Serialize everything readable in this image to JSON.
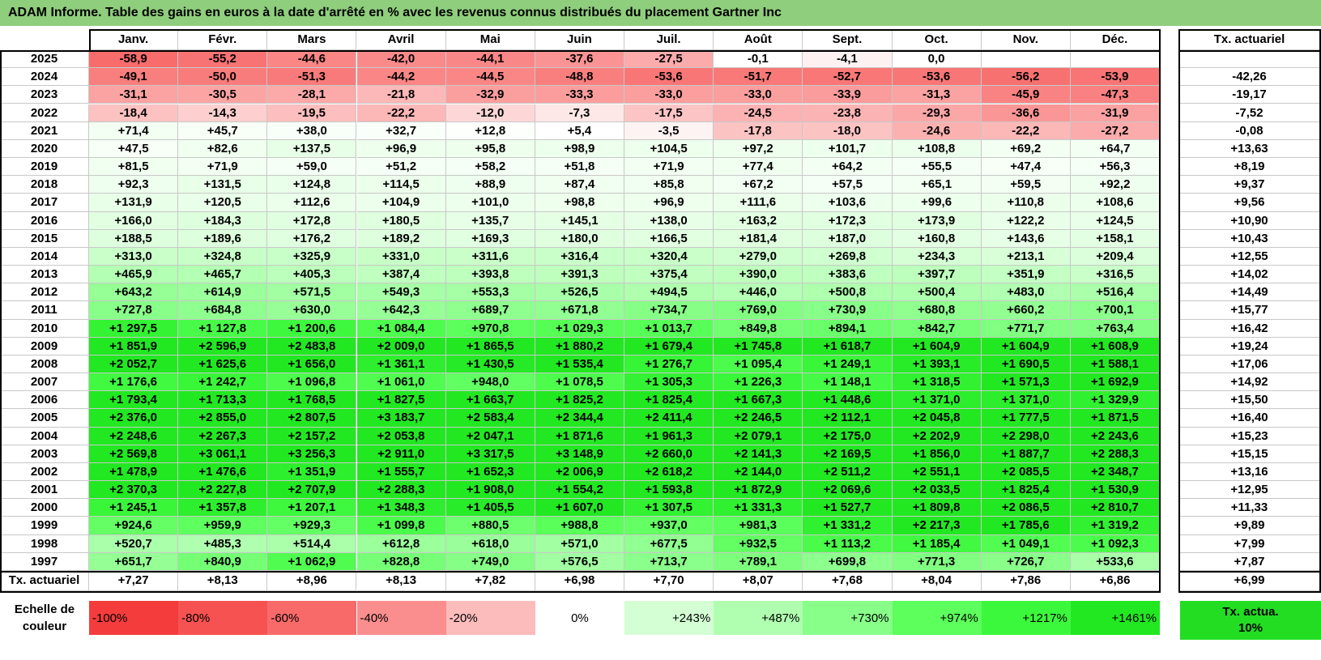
{
  "title": "ADAM Informe. Table des gains en euros à la date d'arrêté en % avec les revenus connus distribués du placement Gartner Inc",
  "table": {
    "header": [
      "Janv.",
      "Févr.",
      "Mars",
      "Avril",
      "Mai",
      "Juin",
      "Juil.",
      "Août",
      "Sept.",
      "Oct.",
      "Nov.",
      "Déc."
    ],
    "rate_header": "Tx. actuariel",
    "rows": [
      {
        "year": "2025",
        "cells": [
          "-58,9",
          "-55,2",
          "-44,6",
          "-42,0",
          "-44,1",
          "-37,6",
          "-27,5",
          "-0,1",
          "-4,1",
          "0,0",
          null,
          null
        ],
        "rate": null
      },
      {
        "year": "2024",
        "cells": [
          "-49,1",
          "-50,0",
          "-51,3",
          "-44,2",
          "-44,5",
          "-48,8",
          "-53,6",
          "-51,7",
          "-52,7",
          "-53,6",
          "-56,2",
          "-53,9"
        ],
        "rate": "-42,26"
      },
      {
        "year": "2023",
        "cells": [
          "-31,1",
          "-30,5",
          "-28,1",
          "-21,8",
          "-32,9",
          "-33,3",
          "-33,0",
          "-33,0",
          "-33,9",
          "-31,3",
          "-45,9",
          "-47,3"
        ],
        "rate": "-19,17"
      },
      {
        "year": "2022",
        "cells": [
          "-18,4",
          "-14,3",
          "-19,5",
          "-22,2",
          "-12,0",
          "-7,3",
          "-17,5",
          "-24,5",
          "-23,8",
          "-29,3",
          "-36,6",
          "-31,9"
        ],
        "rate": "-7,52"
      },
      {
        "year": "2021",
        "cells": [
          "+71,4",
          "+45,7",
          "+38,0",
          "+32,7",
          "+12,8",
          "+5,4",
          "-3,5",
          "-17,8",
          "-18,0",
          "-24,6",
          "-22,2",
          "-27,2"
        ],
        "rate": "-0,08"
      },
      {
        "year": "2020",
        "cells": [
          "+47,5",
          "+82,6",
          "+137,5",
          "+96,9",
          "+95,8",
          "+98,9",
          "+104,5",
          "+97,2",
          "+101,7",
          "+108,8",
          "+69,2",
          "+64,7"
        ],
        "rate": "+13,63"
      },
      {
        "year": "2019",
        "cells": [
          "+81,5",
          "+71,9",
          "+59,0",
          "+51,2",
          "+58,2",
          "+51,8",
          "+71,9",
          "+77,4",
          "+64,2",
          "+55,5",
          "+47,4",
          "+56,3"
        ],
        "rate": "+8,19"
      },
      {
        "year": "2018",
        "cells": [
          "+92,3",
          "+131,5",
          "+124,8",
          "+114,5",
          "+88,9",
          "+87,4",
          "+85,8",
          "+67,2",
          "+57,5",
          "+65,1",
          "+59,5",
          "+92,2"
        ],
        "rate": "+9,37"
      },
      {
        "year": "2017",
        "cells": [
          "+131,9",
          "+120,5",
          "+112,6",
          "+104,9",
          "+101,0",
          "+98,8",
          "+96,9",
          "+111,6",
          "+103,6",
          "+99,6",
          "+110,8",
          "+108,6"
        ],
        "rate": "+9,56"
      },
      {
        "year": "2016",
        "cells": [
          "+166,0",
          "+184,3",
          "+172,8",
          "+180,5",
          "+135,7",
          "+145,1",
          "+138,0",
          "+163,2",
          "+172,3",
          "+173,9",
          "+122,2",
          "+124,5"
        ],
        "rate": "+10,90"
      },
      {
        "year": "2015",
        "cells": [
          "+188,5",
          "+189,6",
          "+176,2",
          "+189,2",
          "+169,3",
          "+180,0",
          "+166,5",
          "+181,4",
          "+187,0",
          "+160,8",
          "+143,6",
          "+158,1"
        ],
        "rate": "+10,43"
      },
      {
        "year": "2014",
        "cells": [
          "+313,0",
          "+324,8",
          "+325,9",
          "+331,0",
          "+311,6",
          "+316,4",
          "+320,4",
          "+279,0",
          "+269,8",
          "+234,3",
          "+213,1",
          "+209,4"
        ],
        "rate": "+12,55"
      },
      {
        "year": "2013",
        "cells": [
          "+465,9",
          "+465,7",
          "+405,3",
          "+387,4",
          "+393,8",
          "+391,3",
          "+375,4",
          "+390,0",
          "+383,6",
          "+397,7",
          "+351,9",
          "+316,5"
        ],
        "rate": "+14,02"
      },
      {
        "year": "2012",
        "cells": [
          "+643,2",
          "+614,9",
          "+571,5",
          "+549,3",
          "+553,3",
          "+526,5",
          "+494,5",
          "+446,0",
          "+500,8",
          "+500,4",
          "+483,0",
          "+516,4"
        ],
        "rate": "+14,49"
      },
      {
        "year": "2011",
        "cells": [
          "+727,8",
          "+684,8",
          "+630,0",
          "+642,3",
          "+689,7",
          "+671,8",
          "+734,7",
          "+769,0",
          "+730,9",
          "+680,8",
          "+660,2",
          "+700,1"
        ],
        "rate": "+15,77"
      },
      {
        "year": "2010",
        "cells": [
          "+1 297,5",
          "+1 127,8",
          "+1 200,6",
          "+1 084,4",
          "+970,8",
          "+1 029,3",
          "+1 013,7",
          "+849,8",
          "+894,1",
          "+842,7",
          "+771,7",
          "+763,4"
        ],
        "rate": "+16,42"
      },
      {
        "year": "2009",
        "cells": [
          "+1 851,9",
          "+2 596,9",
          "+2 483,8",
          "+2 009,0",
          "+1 865,5",
          "+1 880,2",
          "+1 679,4",
          "+1 745,8",
          "+1 618,7",
          "+1 604,9",
          "+1 604,9",
          "+1 608,9"
        ],
        "rate": "+19,24"
      },
      {
        "year": "2008",
        "cells": [
          "+2 052,7",
          "+1 625,6",
          "+1 656,0",
          "+1 361,1",
          "+1 430,5",
          "+1 535,4",
          "+1 276,7",
          "+1 095,4",
          "+1 249,1",
          "+1 393,1",
          "+1 690,5",
          "+1 588,1"
        ],
        "rate": "+17,06"
      },
      {
        "year": "2007",
        "cells": [
          "+1 176,6",
          "+1 242,7",
          "+1 096,8",
          "+1 061,0",
          "+948,0",
          "+1 078,5",
          "+1 305,3",
          "+1 226,3",
          "+1 148,1",
          "+1 318,5",
          "+1 571,3",
          "+1 692,9"
        ],
        "rate": "+14,92"
      },
      {
        "year": "2006",
        "cells": [
          "+1 793,4",
          "+1 713,3",
          "+1 768,5",
          "+1 827,5",
          "+1 663,7",
          "+1 825,2",
          "+1 825,4",
          "+1 667,3",
          "+1 448,6",
          "+1 371,0",
          "+1 371,0",
          "+1 329,9"
        ],
        "rate": "+15,50"
      },
      {
        "year": "2005",
        "cells": [
          "+2 376,0",
          "+2 855,0",
          "+2 807,5",
          "+3 183,7",
          "+2 583,4",
          "+2 344,4",
          "+2 411,4",
          "+2 246,5",
          "+2 112,1",
          "+2 045,8",
          "+1 777,5",
          "+1 871,5"
        ],
        "rate": "+16,40"
      },
      {
        "year": "2004",
        "cells": [
          "+2 248,6",
          "+2 267,3",
          "+2 157,2",
          "+2 053,8",
          "+2 047,1",
          "+1 871,6",
          "+1 961,3",
          "+2 079,1",
          "+2 175,0",
          "+2 202,9",
          "+2 298,0",
          "+2 243,6"
        ],
        "rate": "+15,23"
      },
      {
        "year": "2003",
        "cells": [
          "+2 569,8",
          "+3 061,1",
          "+3 256,3",
          "+2 911,0",
          "+3 317,5",
          "+3 148,9",
          "+2 660,0",
          "+2 141,3",
          "+2 169,5",
          "+1 856,0",
          "+1 887,7",
          "+2 288,3"
        ],
        "rate": "+15,15"
      },
      {
        "year": "2002",
        "cells": [
          "+1 478,9",
          "+1 476,6",
          "+1 351,9",
          "+1 555,7",
          "+1 652,3",
          "+2 006,9",
          "+2 618,2",
          "+2 144,0",
          "+2 511,2",
          "+2 551,1",
          "+2 085,5",
          "+2 348,7"
        ],
        "rate": "+13,16"
      },
      {
        "year": "2001",
        "cells": [
          "+2 370,3",
          "+2 227,8",
          "+2 707,9",
          "+2 288,3",
          "+1 908,0",
          "+1 554,2",
          "+1 593,8",
          "+1 872,9",
          "+2 069,6",
          "+2 033,5",
          "+1 825,4",
          "+1 530,9"
        ],
        "rate": "+12,95"
      },
      {
        "year": "2000",
        "cells": [
          "+1 245,1",
          "+1 357,8",
          "+1 207,1",
          "+1 348,3",
          "+1 405,5",
          "+1 607,0",
          "+1 307,5",
          "+1 331,3",
          "+1 527,7",
          "+1 809,8",
          "+2 086,5",
          "+2 810,7"
        ],
        "rate": "+11,33"
      },
      {
        "year": "1999",
        "cells": [
          "+924,6",
          "+959,9",
          "+929,3",
          "+1 099,8",
          "+880,5",
          "+988,8",
          "+937,0",
          "+981,3",
          "+1 331,2",
          "+2 217,3",
          "+1 785,6",
          "+1 319,2"
        ],
        "rate": "+9,89"
      },
      {
        "year": "1998",
        "cells": [
          "+520,7",
          "+485,3",
          "+514,4",
          "+612,8",
          "+618,0",
          "+571,0",
          "+677,5",
          "+932,5",
          "+1 113,2",
          "+1 185,4",
          "+1 049,1",
          "+1 092,3"
        ],
        "rate": "+7,99"
      },
      {
        "year": "1997",
        "cells": [
          "+651,7",
          "+840,9",
          "+1 062,9",
          "+828,8",
          "+749,0",
          "+576,5",
          "+713,7",
          "+789,1",
          "+699,8",
          "+771,3",
          "+726,7",
          "+533,6"
        ],
        "rate": "+7,87"
      }
    ],
    "footer": {
      "label": "Tx. actuariel",
      "cells": [
        "+7,27",
        "+8,13",
        "+8,96",
        "+8,13",
        "+7,82",
        "+6,98",
        "+7,70",
        "+8,07",
        "+7,68",
        "+8,04",
        "+7,86",
        "+6,86"
      ],
      "rate": "+6,99"
    }
  },
  "legend": {
    "label": "Echelle de couleur",
    "items": [
      {
        "label": "-100%",
        "color": "#f43c3c"
      },
      {
        "label": "-80%",
        "color": "#f65252"
      },
      {
        "label": "-60%",
        "color": "#f86a6a"
      },
      {
        "label": "-40%",
        "color": "#fa8e8e"
      },
      {
        "label": "-20%",
        "color": "#fcbcbc"
      },
      {
        "label": "0%",
        "color": "#ffffff"
      },
      {
        "label": "+243%",
        "color": "#d4ffd4"
      },
      {
        "label": "+487%",
        "color": "#b0ffb0"
      },
      {
        "label": "+730%",
        "color": "#88ff88"
      },
      {
        "label": "+974%",
        "color": "#5cff5c"
      },
      {
        "label": "+1217%",
        "color": "#3cf83c"
      },
      {
        "label": "+1461%",
        "color": "#22e822"
      }
    ],
    "rate_item": {
      "label": "Tx. actua. 10%",
      "color": "#22dd22"
    }
  }
}
